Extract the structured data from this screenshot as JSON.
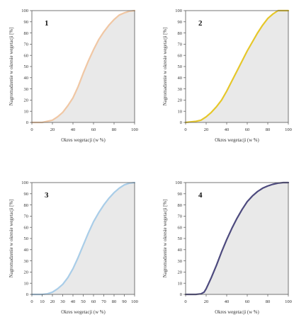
{
  "chart_data": [
    {
      "type": "area",
      "panel_label": "1",
      "xlabel": "Okres wegetacji (w %)",
      "ylabel": "Nagromadzenie w okresie wegetacji [%]",
      "xlim": [
        0,
        100
      ],
      "ylim": [
        0,
        100
      ],
      "xticks": [
        0,
        20,
        40,
        60,
        80,
        100
      ],
      "yticks": [
        0,
        10,
        20,
        30,
        40,
        50,
        60,
        70,
        80,
        90,
        100
      ],
      "x": [
        0,
        10,
        20,
        25,
        30,
        35,
        40,
        45,
        50,
        55,
        60,
        65,
        70,
        75,
        80,
        85,
        90,
        95,
        100
      ],
      "series": [
        {
          "values": [
            0,
            0,
            2,
            5,
            9,
            15,
            22,
            32,
            44,
            55,
            65,
            74,
            81,
            87,
            92,
            96,
            98,
            99.5,
            100
          ]
        }
      ],
      "line_color": "#f0c7a4",
      "fill_color": "#e9e9e9",
      "grid": false
    },
    {
      "type": "area",
      "panel_label": "2",
      "xlabel": "Okres wegetacji (w %)",
      "ylabel": "Nagromadzenie w okresie wegetacji [%]",
      "xlim": [
        0,
        100
      ],
      "ylim": [
        0,
        100
      ],
      "xticks": [
        0,
        20,
        40,
        60,
        80,
        100
      ],
      "yticks": [
        0,
        10,
        20,
        30,
        40,
        50,
        60,
        70,
        80,
        90,
        100
      ],
      "x": [
        0,
        10,
        15,
        20,
        25,
        30,
        35,
        40,
        45,
        50,
        55,
        60,
        65,
        70,
        75,
        80,
        85,
        90,
        100
      ],
      "series": [
        {
          "values": [
            0,
            1,
            2,
            5,
            9,
            14,
            20,
            28,
            37,
            46,
            55,
            64,
            72,
            80,
            87,
            93,
            97,
            100,
            100
          ]
        }
      ],
      "line_color": "#e6c72a",
      "fill_color": "#e9e9e9",
      "grid": false
    },
    {
      "type": "area",
      "panel_label": "3",
      "xlabel": "Okres wegetacji (w %)",
      "ylabel": "Nagromadzenie w okresie wegetacji [%]",
      "xlim": [
        0,
        100
      ],
      "ylim": [
        0,
        100
      ],
      "xticks": [
        0,
        10,
        20,
        30,
        40,
        50,
        60,
        70,
        80,
        90,
        100
      ],
      "yticks": [
        0,
        10,
        20,
        30,
        40,
        50,
        60,
        70,
        80,
        90,
        100
      ],
      "x": [
        0,
        10,
        15,
        20,
        25,
        30,
        35,
        40,
        45,
        50,
        55,
        60,
        65,
        70,
        75,
        80,
        85,
        90,
        95,
        100
      ],
      "series": [
        {
          "values": [
            0,
            0,
            0.5,
            2,
            5,
            9,
            15,
            23,
            33,
            44,
            55,
            65,
            73,
            80,
            86,
            91,
            95,
            98,
            99.5,
            100
          ]
        }
      ],
      "line_color": "#a9cde8",
      "fill_color": "#e9e9e9",
      "grid": false
    },
    {
      "type": "area",
      "panel_label": "4",
      "xlabel": "Okres wegetacji (w %)",
      "ylabel": "Nagromadzenie w okresie wegetacji [%]",
      "xlim": [
        0,
        100
      ],
      "ylim": [
        0,
        100
      ],
      "xticks": [
        0,
        20,
        40,
        60,
        80,
        100
      ],
      "yticks": [
        0,
        10,
        20,
        30,
        40,
        50,
        60,
        70,
        80,
        90,
        100
      ],
      "x": [
        0,
        10,
        15,
        18,
        20,
        22,
        25,
        30,
        35,
        40,
        45,
        50,
        55,
        60,
        65,
        70,
        75,
        80,
        85,
        90,
        95,
        100
      ],
      "series": [
        {
          "values": [
            0,
            0,
            0.5,
            2,
            5,
            9,
            15,
            26,
            38,
            49,
            59,
            68,
            76,
            83,
            88,
            92,
            95,
            97,
            98.5,
            99.5,
            100,
            100
          ]
        }
      ],
      "line_color": "#4d4a7e",
      "fill_color": "#e9e9e9",
      "grid": false
    }
  ]
}
